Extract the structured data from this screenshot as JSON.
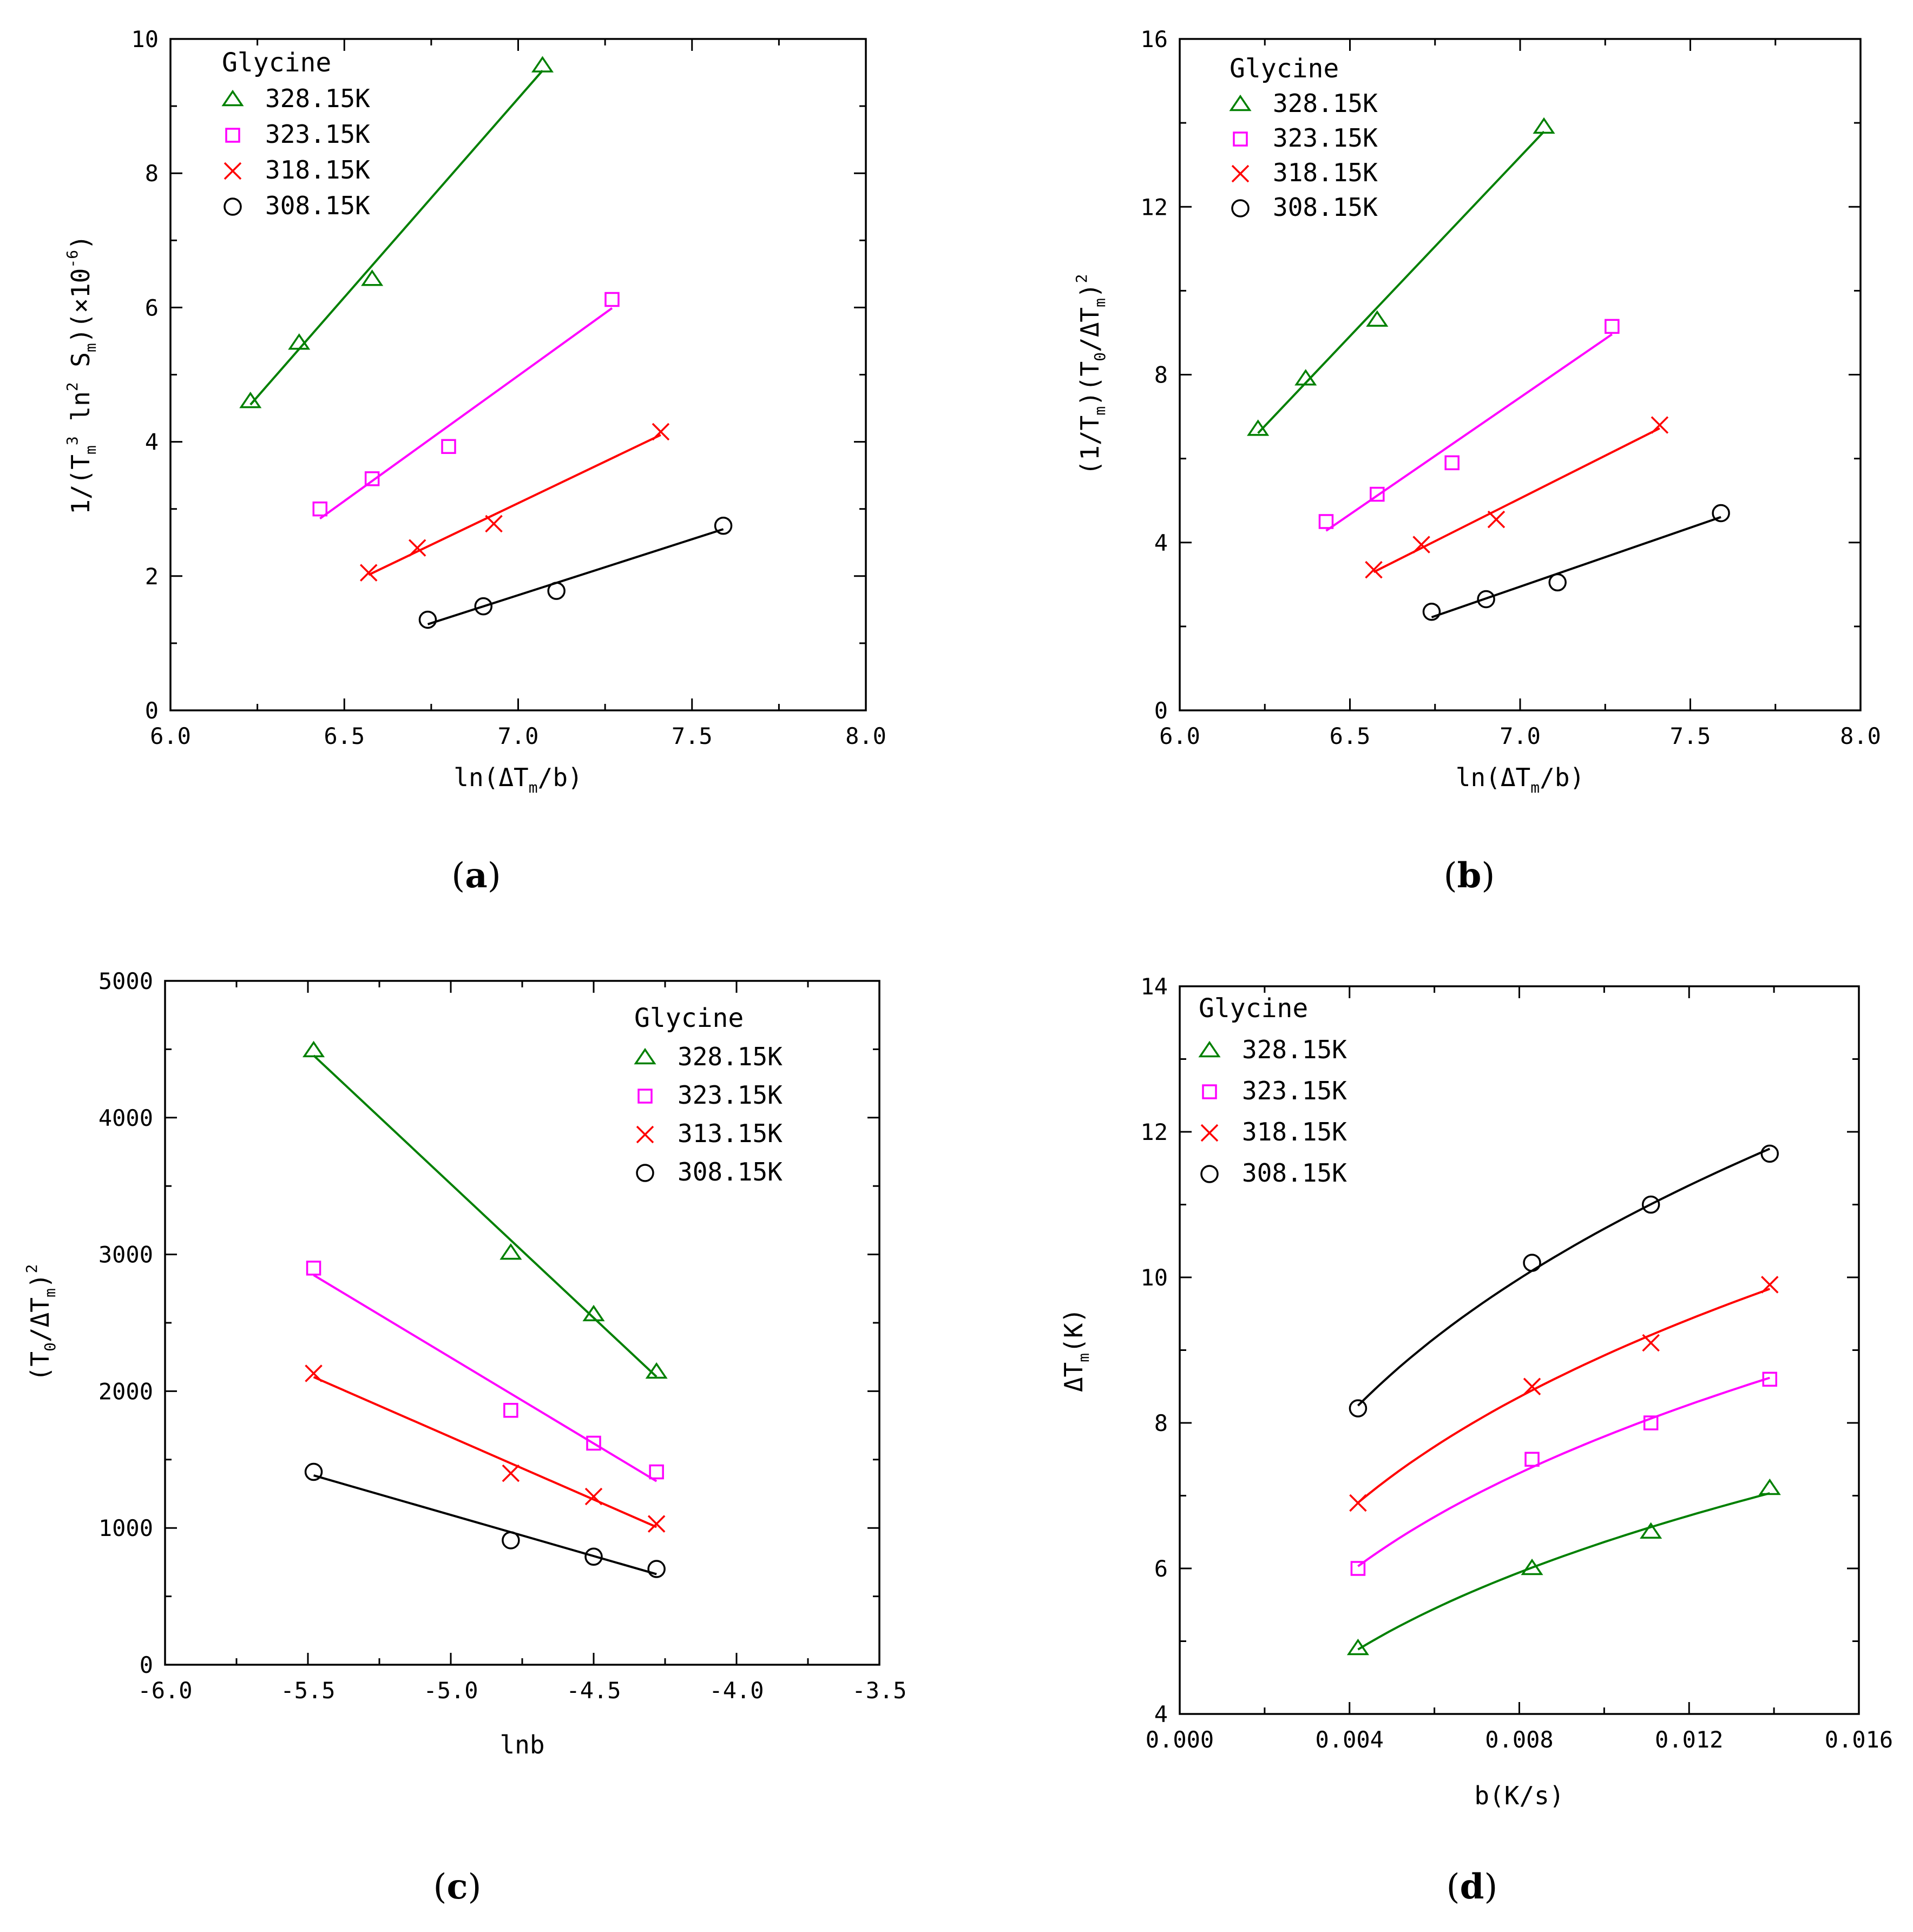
{
  "figure": {
    "panels": [
      {
        "id": "a",
        "label": "(a)"
      },
      {
        "id": "b",
        "label": "(b)"
      },
      {
        "id": "c",
        "label": "(c)"
      },
      {
        "id": "d",
        "label": "(d)"
      }
    ]
  },
  "colors": {
    "green": "#008000",
    "magenta": "#ff00ff",
    "red": "#ff0000",
    "black": "#000000"
  },
  "chart_data": [
    {
      "id": "a",
      "type": "scatter",
      "title": "",
      "panel_label": "(a)",
      "xlabel": "ln(ΔT_m/b)",
      "ylabel": "1/(T_m^3 ln^2 S_m)(×10^-6)",
      "xlim": [
        6.0,
        8.0
      ],
      "ylim": [
        0,
        10
      ],
      "xticks": [
        "6.0",
        "6.5",
        "7.0",
        "7.5",
        "8.0"
      ],
      "yticks": [
        "0",
        "2",
        "4",
        "6",
        "8",
        "10"
      ],
      "legend": {
        "title": "Glycine",
        "position": "top-left"
      },
      "series": [
        {
          "name": "328.15K",
          "color": "green",
          "marker": "triangle",
          "x": [
            6.23,
            6.37,
            6.58,
            7.07
          ],
          "y": [
            4.6,
            5.47,
            6.42,
            9.6
          ],
          "fit": {
            "kind": "linear",
            "x": [
              6.23,
              7.07
            ]
          }
        },
        {
          "name": "323.15K",
          "color": "magenta",
          "marker": "square",
          "x": [
            6.43,
            6.58,
            6.8,
            7.27
          ],
          "y": [
            3.0,
            3.45,
            3.93,
            6.12
          ],
          "fit": {
            "kind": "linear",
            "x": [
              6.43,
              7.27
            ]
          }
        },
        {
          "name": "318.15K",
          "color": "red",
          "marker": "x",
          "x": [
            6.57,
            6.71,
            6.93,
            7.41
          ],
          "y": [
            2.05,
            2.42,
            2.78,
            4.15
          ],
          "fit": {
            "kind": "linear",
            "x": [
              6.57,
              7.41
            ]
          }
        },
        {
          "name": "308.15K",
          "color": "black",
          "marker": "circle",
          "x": [
            6.74,
            6.9,
            7.11,
            7.59
          ],
          "y": [
            1.35,
            1.55,
            1.78,
            2.75
          ],
          "fit": {
            "kind": "linear",
            "x": [
              6.74,
              7.59
            ]
          }
        }
      ]
    },
    {
      "id": "b",
      "type": "scatter",
      "title": "",
      "panel_label": "(b)",
      "xlabel": "ln(ΔT_m/b)",
      "ylabel": "(1/T_m)(T_0/ΔT_m)^2",
      "xlim": [
        6.0,
        8.0
      ],
      "ylim": [
        0,
        16
      ],
      "xticks": [
        "6.0",
        "6.5",
        "7.0",
        "7.5",
        "8.0"
      ],
      "yticks": [
        "0",
        "4",
        "8",
        "12",
        "16"
      ],
      "legend": {
        "title": "Glycine",
        "position": "top-left"
      },
      "series": [
        {
          "name": "328.15K",
          "color": "green",
          "marker": "triangle",
          "x": [
            6.23,
            6.37,
            6.58,
            7.07
          ],
          "y": [
            6.7,
            7.9,
            9.3,
            13.9
          ],
          "fit": {
            "kind": "linear",
            "x": [
              6.23,
              7.07
            ]
          }
        },
        {
          "name": "323.15K",
          "color": "magenta",
          "marker": "square",
          "x": [
            6.43,
            6.58,
            6.8,
            7.27
          ],
          "y": [
            4.5,
            5.15,
            5.9,
            9.15
          ],
          "fit": {
            "kind": "linear",
            "x": [
              6.43,
              7.27
            ]
          }
        },
        {
          "name": "318.15K",
          "color": "red",
          "marker": "x",
          "x": [
            6.57,
            6.71,
            6.93,
            7.41
          ],
          "y": [
            3.35,
            3.95,
            4.55,
            6.8
          ],
          "fit": {
            "kind": "linear",
            "x": [
              6.57,
              7.41
            ]
          }
        },
        {
          "name": "308.15K",
          "color": "black",
          "marker": "circle",
          "x": [
            6.74,
            6.9,
            7.11,
            7.59
          ],
          "y": [
            2.35,
            2.65,
            3.05,
            4.7
          ],
          "fit": {
            "kind": "linear",
            "x": [
              6.74,
              7.59
            ]
          }
        }
      ]
    },
    {
      "id": "c",
      "type": "scatter",
      "title": "",
      "panel_label": "(c)",
      "xlabel": "lnb",
      "ylabel": "(T_0/ΔT_m)^2",
      "xlim": [
        -6.0,
        -3.5
      ],
      "ylim": [
        0,
        5000
      ],
      "xticks": [
        "-6.0",
        "-5.5",
        "-5.0",
        "-4.5",
        "-4.0",
        "-3.5"
      ],
      "yticks": [
        "0",
        "1000",
        "2000",
        "3000",
        "4000",
        "5000"
      ],
      "legend": {
        "title": "Glycine",
        "position": "top-right"
      },
      "series": [
        {
          "name": "328.15K",
          "color": "green",
          "marker": "triangle",
          "x": [
            -5.48,
            -4.79,
            -4.5,
            -4.28
          ],
          "y": [
            4490,
            3010,
            2560,
            2140
          ],
          "fit": {
            "kind": "linear",
            "x": [
              -5.48,
              -4.28
            ]
          }
        },
        {
          "name": "323.15K",
          "color": "magenta",
          "marker": "square",
          "x": [
            -5.48,
            -4.79,
            -4.5,
            -4.28
          ],
          "y": [
            2900,
            1860,
            1620,
            1410
          ],
          "fit": {
            "kind": "linear",
            "x": [
              -5.48,
              -4.28
            ]
          }
        },
        {
          "name": "313.15K",
          "color": "red",
          "marker": "x",
          "x": [
            -5.48,
            -4.79,
            -4.5,
            -4.28
          ],
          "y": [
            2130,
            1400,
            1230,
            1030
          ],
          "fit": {
            "kind": "linear",
            "x": [
              -5.48,
              -4.28
            ]
          }
        },
        {
          "name": "308.15K",
          "color": "black",
          "marker": "circle",
          "x": [
            -5.48,
            -4.79,
            -4.5,
            -4.28
          ],
          "y": [
            1410,
            910,
            790,
            700
          ],
          "fit": {
            "kind": "linear",
            "x": [
              -5.48,
              -4.28
            ]
          }
        }
      ]
    },
    {
      "id": "d",
      "type": "scatter",
      "title": "",
      "panel_label": "(d)",
      "xlabel": "b(K/s)",
      "ylabel": "ΔT_m(K)",
      "xlim": [
        0.0,
        0.016
      ],
      "ylim": [
        4,
        14
      ],
      "xticks": [
        "0.000",
        "0.004",
        "0.008",
        "0.012",
        "0.016"
      ],
      "yticks": [
        "4",
        "6",
        "8",
        "10",
        "12",
        "14"
      ],
      "legend": {
        "title": "Glycine",
        "position": "top-left"
      },
      "series": [
        {
          "name": "328.15K",
          "color": "green",
          "marker": "triangle",
          "x": [
            0.0042,
            0.0083,
            0.0111,
            0.0139
          ],
          "y": [
            4.9,
            6.0,
            6.5,
            7.1
          ],
          "fit": {
            "kind": "power",
            "x": [
              0.0042,
              0.0139
            ]
          }
        },
        {
          "name": "323.15K",
          "color": "magenta",
          "marker": "square",
          "x": [
            0.0042,
            0.0083,
            0.0111,
            0.0139
          ],
          "y": [
            6.0,
            7.5,
            8.0,
            8.6
          ],
          "fit": {
            "kind": "power",
            "x": [
              0.0042,
              0.0139
            ]
          }
        },
        {
          "name": "318.15K",
          "color": "red",
          "marker": "x",
          "x": [
            0.0042,
            0.0083,
            0.0111,
            0.0139
          ],
          "y": [
            6.9,
            8.5,
            9.1,
            9.9
          ],
          "fit": {
            "kind": "power",
            "x": [
              0.0042,
              0.0139
            ]
          }
        },
        {
          "name": "308.15K",
          "color": "black",
          "marker": "circle",
          "x": [
            0.0042,
            0.0083,
            0.0111,
            0.0139
          ],
          "y": [
            8.2,
            10.2,
            11.0,
            11.7
          ],
          "fit": {
            "kind": "power",
            "x": [
              0.0042,
              0.0139
            ]
          }
        }
      ]
    }
  ]
}
